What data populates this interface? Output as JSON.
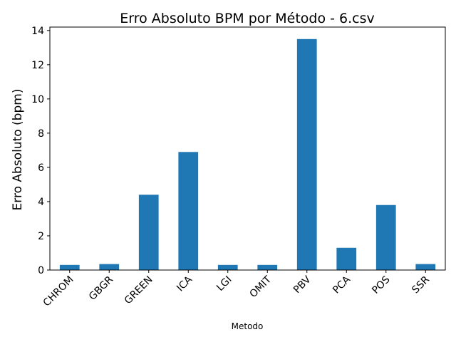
{
  "chart_data": {
    "type": "bar",
    "title": "Erro Absoluto BPM por Método - 6.csv",
    "xlabel": "Metodo",
    "ylabel": "Erro Absoluto (bpm)",
    "categories": [
      "CHROM",
      "GBGR",
      "GREEN",
      "ICA",
      "LGI",
      "OMIT",
      "PBV",
      "PCA",
      "POS",
      "SSR"
    ],
    "values": [
      0.3,
      0.35,
      4.4,
      6.9,
      0.3,
      0.3,
      13.5,
      1.3,
      3.8,
      0.35
    ],
    "ylim": [
      0,
      14.2
    ],
    "yticks": [
      0,
      2,
      4,
      6,
      8,
      10,
      12,
      14
    ],
    "grid": false,
    "legend": "none",
    "bar_color": "#1f77b4"
  }
}
